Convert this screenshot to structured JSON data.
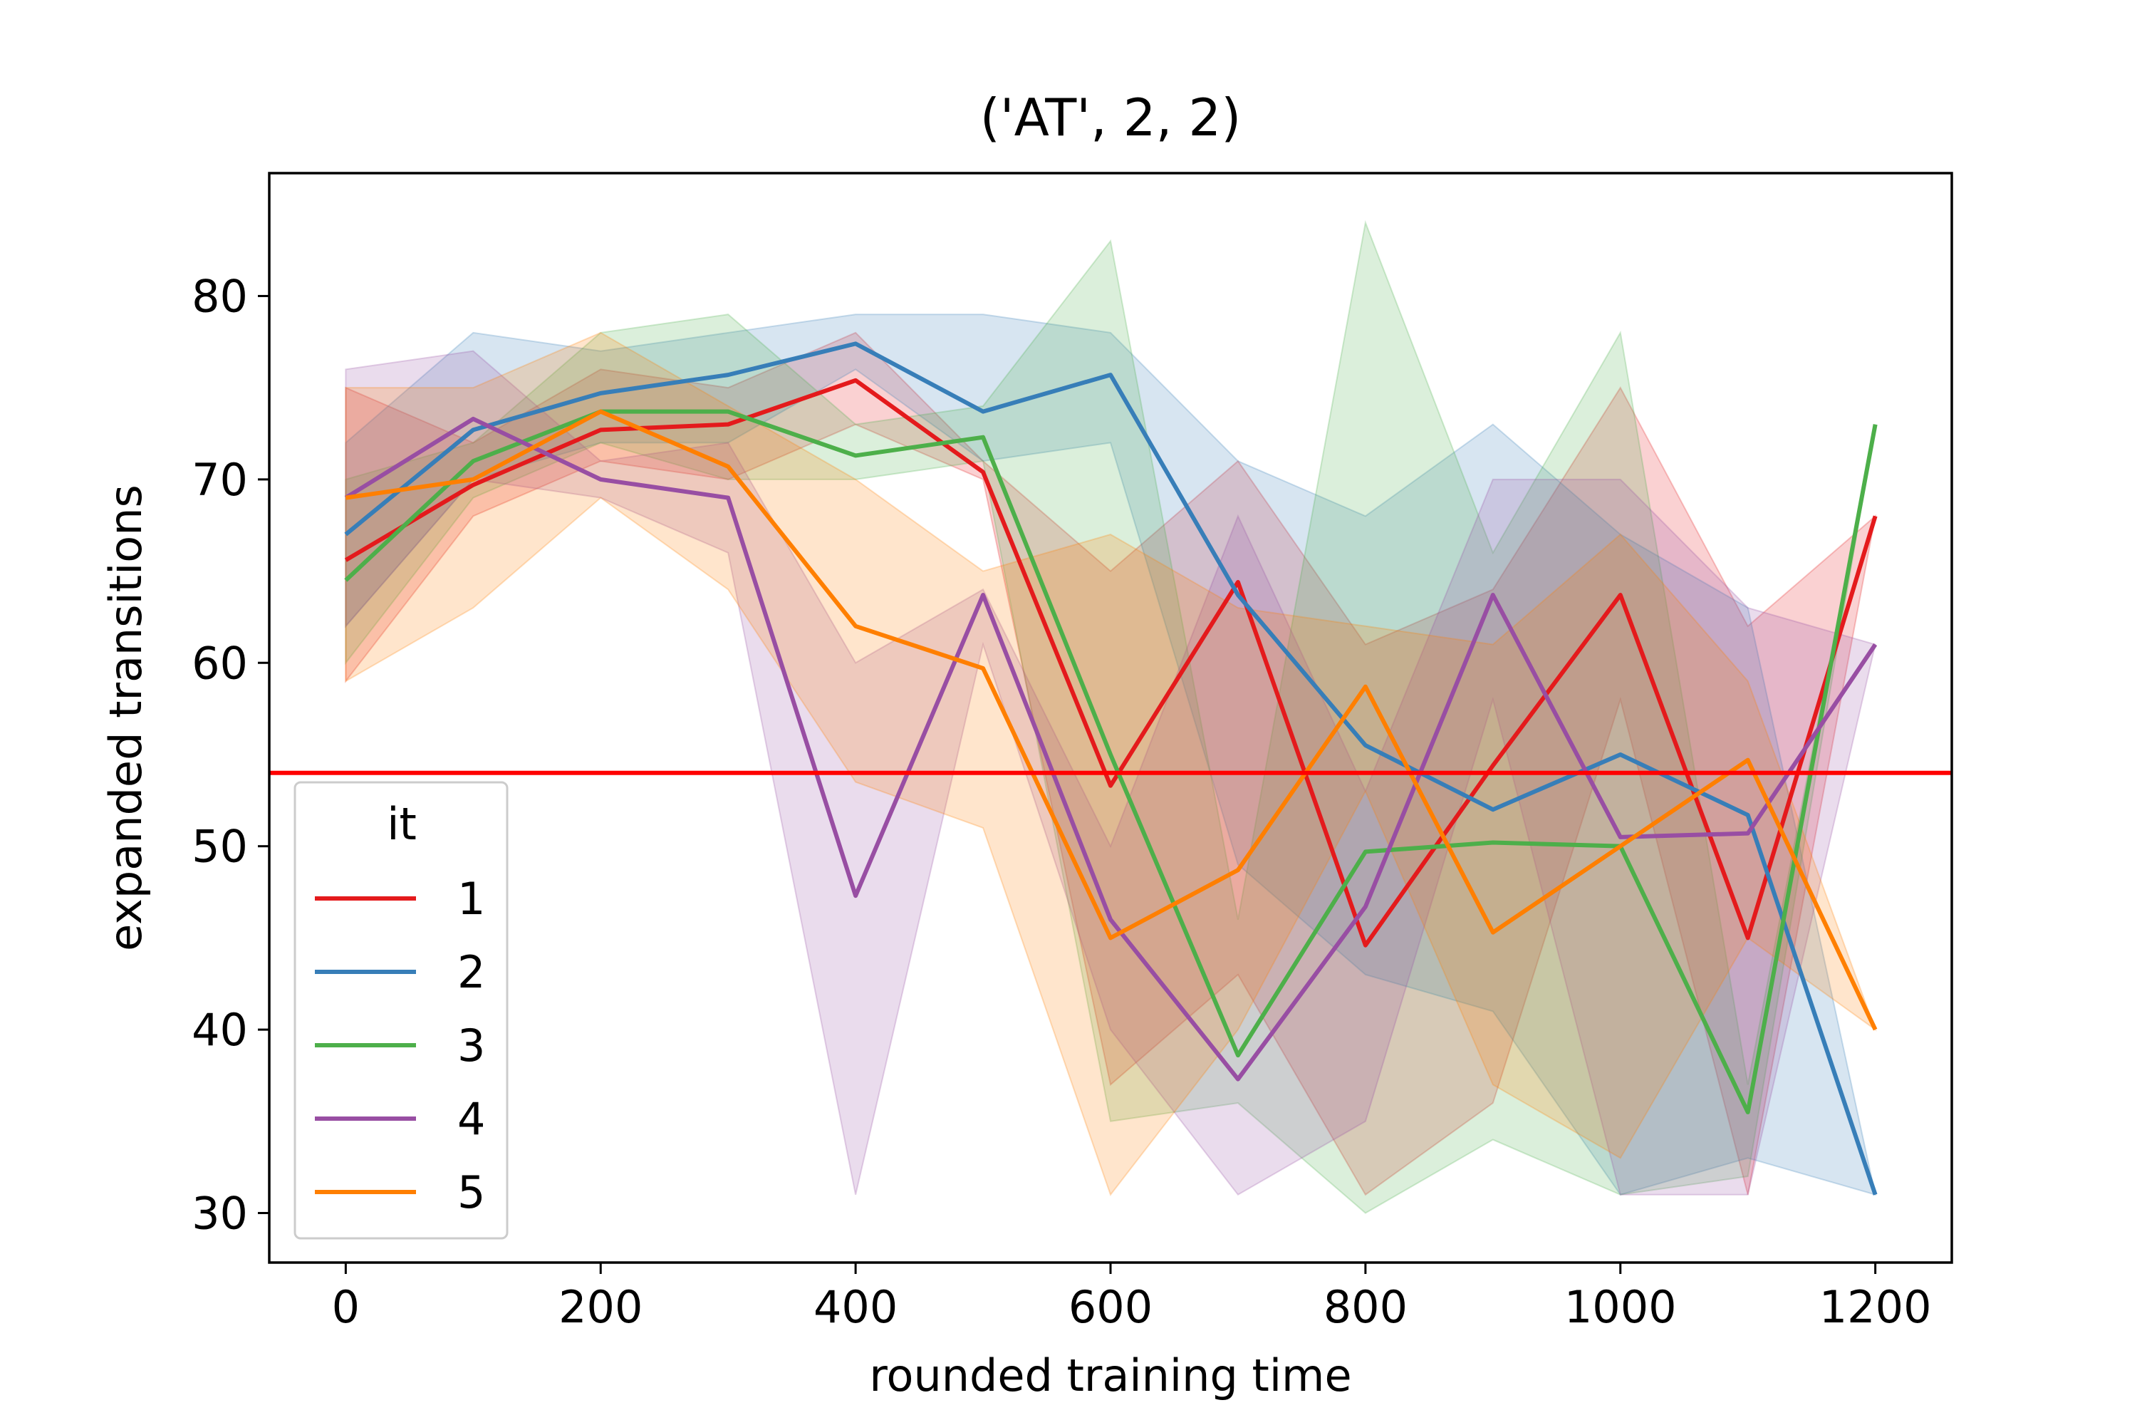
{
  "chart_data": {
    "type": "line",
    "title": "('AT', 2, 2)",
    "xlabel": "rounded training time",
    "ylabel": "expanded transitions",
    "xlim": [
      -60,
      1260
    ],
    "ylim": [
      27.3,
      86.7
    ],
    "xticks": [
      0,
      200,
      400,
      600,
      800,
      1000,
      1200
    ],
    "yticks": [
      30,
      40,
      50,
      60,
      70,
      80
    ],
    "grid": false,
    "legend": {
      "title": "it",
      "placement": "lower-left"
    },
    "reference_line": {
      "y": 54,
      "color": "#ff0000"
    },
    "series": [
      {
        "name": "1",
        "color": "#e41a1c",
        "x": [
          0,
          100,
          200,
          300,
          400,
          500,
          600,
          700,
          800,
          900,
          1000,
          1100,
          1200
        ],
        "y": [
          65.6,
          69.7,
          72.7,
          73.0,
          75.4,
          70.4,
          53.3,
          64.4,
          44.6,
          54.4,
          63.7,
          45.0,
          68.0
        ],
        "lower": [
          59.0,
          68.0,
          71.0,
          70.0,
          73.0,
          70.0,
          37.0,
          43.0,
          31.0,
          36.0,
          58.0,
          31.0,
          68.0
        ],
        "upper": [
          75.0,
          72.0,
          76.0,
          75.0,
          78.0,
          71.0,
          65.0,
          71.0,
          61.0,
          64.0,
          75.0,
          62.0,
          68.0
        ]
      },
      {
        "name": "2",
        "color": "#377eb8",
        "x": [
          0,
          100,
          200,
          300,
          400,
          500,
          600,
          700,
          800,
          900,
          1000,
          1100,
          1200
        ],
        "y": [
          67.0,
          72.7,
          74.7,
          75.7,
          77.4,
          73.7,
          75.7,
          63.7,
          55.5,
          52.0,
          55.0,
          51.7,
          31.0
        ],
        "lower": [
          62.0,
          70.0,
          72.0,
          72.0,
          76.0,
          71.0,
          72.0,
          49.0,
          43.0,
          41.0,
          31.0,
          33.0,
          31.0
        ],
        "upper": [
          72.0,
          78.0,
          77.0,
          78.0,
          79.0,
          79.0,
          78.0,
          71.0,
          68.0,
          73.0,
          67.0,
          63.0,
          31.0
        ]
      },
      {
        "name": "3",
        "color": "#4daf4a",
        "x": [
          0,
          100,
          200,
          300,
          400,
          500,
          600,
          700,
          800,
          900,
          1000,
          1100,
          1200
        ],
        "y": [
          64.5,
          71.0,
          73.7,
          73.7,
          71.3,
          72.3,
          55.0,
          38.6,
          49.7,
          50.2,
          50.0,
          35.5,
          73.0
        ],
        "lower": [
          60.0,
          69.0,
          72.0,
          70.0,
          70.0,
          71.0,
          35.0,
          36.0,
          30.0,
          34.0,
          31.0,
          32.0,
          73.0
        ],
        "upper": [
          70.0,
          72.0,
          78.0,
          79.0,
          73.0,
          74.0,
          83.0,
          46.0,
          84.0,
          66.0,
          78.0,
          37.0,
          73.0
        ]
      },
      {
        "name": "4",
        "color": "#984ea3",
        "x": [
          0,
          100,
          200,
          300,
          400,
          500,
          600,
          700,
          800,
          900,
          1000,
          1100,
          1200
        ],
        "y": [
          69.0,
          73.3,
          70.0,
          69.0,
          47.3,
          63.7,
          46.0,
          37.3,
          46.7,
          63.7,
          50.5,
          50.7,
          61.0
        ],
        "lower": [
          62.0,
          70.0,
          69.0,
          66.0,
          31.0,
          61.0,
          40.0,
          31.0,
          35.0,
          58.0,
          31.0,
          31.0,
          61.0
        ],
        "upper": [
          76.0,
          77.0,
          71.0,
          72.0,
          60.0,
          64.0,
          50.0,
          68.0,
          53.0,
          70.0,
          70.0,
          63.0,
          61.0
        ]
      },
      {
        "name": "5",
        "color": "#ff7f00",
        "x": [
          0,
          100,
          200,
          300,
          400,
          500,
          600,
          700,
          800,
          900,
          1000,
          1100,
          1200
        ],
        "y": [
          69.0,
          70.0,
          73.7,
          70.7,
          62.0,
          59.7,
          45.0,
          48.7,
          58.7,
          45.3,
          50.0,
          54.7,
          40.0
        ],
        "lower": [
          59.0,
          63.0,
          69.0,
          64.0,
          53.5,
          51.0,
          31.0,
          40.0,
          53.0,
          37.0,
          33.0,
          45.0,
          40.0
        ],
        "upper": [
          75.0,
          75.0,
          78.0,
          74.0,
          70.0,
          65.0,
          67.0,
          63.0,
          62.0,
          61.0,
          67.0,
          59.0,
          40.0
        ]
      }
    ]
  }
}
